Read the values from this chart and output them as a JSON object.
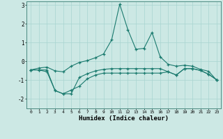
{
  "xlabel": "Humidex (Indice chaleur)",
  "x": [
    0,
    1,
    2,
    3,
    4,
    5,
    6,
    7,
    8,
    9,
    10,
    11,
    12,
    13,
    14,
    15,
    16,
    17,
    18,
    19,
    20,
    21,
    22,
    23
  ],
  "line1": [
    -0.45,
    -0.35,
    -0.3,
    -0.5,
    -0.55,
    -0.25,
    -0.05,
    0.05,
    0.2,
    0.4,
    1.15,
    3.05,
    1.7,
    0.65,
    0.7,
    1.55,
    0.25,
    -0.15,
    -0.25,
    -0.2,
    -0.25,
    -0.42,
    -0.52,
    -1.0
  ],
  "line2": [
    -0.45,
    -0.45,
    -0.55,
    -1.55,
    -1.72,
    -1.72,
    -0.85,
    -0.65,
    -0.5,
    -0.42,
    -0.38,
    -0.38,
    -0.38,
    -0.38,
    -0.38,
    -0.38,
    -0.38,
    -0.55,
    -0.72,
    -0.38,
    -0.38,
    -0.48,
    -0.68,
    -0.98
  ],
  "line3": [
    -0.45,
    -0.45,
    -0.45,
    -1.55,
    -1.72,
    -1.52,
    -1.32,
    -0.92,
    -0.72,
    -0.62,
    -0.62,
    -0.62,
    -0.62,
    -0.62,
    -0.62,
    -0.62,
    -0.62,
    -0.55,
    -0.72,
    -0.38,
    -0.38,
    -0.48,
    -0.68,
    -0.98
  ],
  "ylim": [
    -2.5,
    3.2
  ],
  "yticks": [
    -2,
    -1,
    0,
    1,
    2,
    3
  ],
  "xlim": [
    -0.5,
    23.5
  ],
  "line_color": "#1a7a6e",
  "bg_color": "#cce8e4",
  "grid_color": "#a8d4d0"
}
